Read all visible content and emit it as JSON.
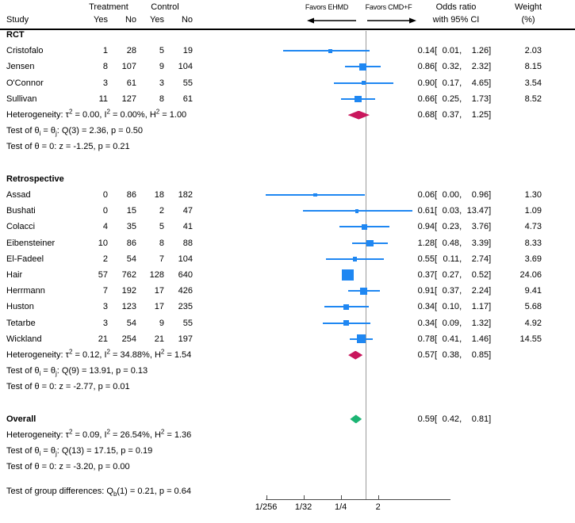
{
  "header": {
    "study": "Study",
    "treatment": "Treatment",
    "control": "Control",
    "yes": "Yes",
    "no": "No",
    "favors_left": "Favors EHMD",
    "favors_right": "Favors CMD+F",
    "or_line1": "Odds ratio",
    "or_line2": "with 95% CI",
    "weight_line1": "Weight",
    "weight_line2": "(%)"
  },
  "colors": {
    "study_marker": "#1f87f2",
    "subgroup_diamond": "#c9165c",
    "overall_diamond": "#1bb473",
    "ref_line": "#9a9a9a",
    "axis": "#4a4a4a",
    "text": "#000000"
  },
  "chart_data": {
    "type": "forest",
    "x_scale": "log2",
    "ref_value": 1,
    "axis_ticks": [
      {
        "label": "1/256",
        "value": 0.00390625
      },
      {
        "label": "1/32",
        "value": 0.03125
      },
      {
        "label": "1/4",
        "value": 0.25
      },
      {
        "label": "2",
        "value": 2
      }
    ],
    "groups": [
      {
        "name": "RCT",
        "studies": [
          {
            "study": "Cristofalo",
            "t_yes": "1",
            "t_no": "28",
            "c_yes": "5",
            "c_no": "19",
            "est": "0.14",
            "lo": "0.01",
            "hi": "1.26",
            "weight": "2.03"
          },
          {
            "study": "Jensen",
            "t_yes": "8",
            "t_no": "107",
            "c_yes": "9",
            "c_no": "104",
            "est": "0.86",
            "lo": "0.32",
            "hi": "2.32",
            "weight": "8.15"
          },
          {
            "study": "O'Connor",
            "t_yes": "3",
            "t_no": "61",
            "c_yes": "3",
            "c_no": "55",
            "est": "0.90",
            "lo": "0.17",
            "hi": "4.65",
            "weight": "3.54"
          },
          {
            "study": "Sullivan",
            "t_yes": "11",
            "t_no": "127",
            "c_yes": "8",
            "c_no": "61",
            "est": "0.66",
            "lo": "0.25",
            "hi": "1.73",
            "weight": "8.52"
          }
        ],
        "summary": {
          "est": "0.68",
          "lo": "0.37",
          "hi": "1.25"
        },
        "notes": [
          "Heterogeneity: τ^2 = 0.00, I^2 = 0.00%, H^2 = 1.00",
          "Test of θ_i = θ_j: Q(3) = 2.36, p = 0.50",
          "Test of θ = 0: z = -1.25, p = 0.21"
        ]
      },
      {
        "name": "Retrospective",
        "studies": [
          {
            "study": "Assad",
            "t_yes": "0",
            "t_no": "86",
            "c_yes": "18",
            "c_no": "182",
            "est": "0.06",
            "lo": "0.00",
            "hi": "0.96",
            "weight": "1.30"
          },
          {
            "study": "Bushati",
            "t_yes": "0",
            "t_no": "15",
            "c_yes": "2",
            "c_no": "47",
            "est": "0.61",
            "lo": "0.03",
            "hi": "13.47",
            "weight": "1.09"
          },
          {
            "study": "Colacci",
            "t_yes": "4",
            "t_no": "35",
            "c_yes": "5",
            "c_no": "41",
            "est": "0.94",
            "lo": "0.23",
            "hi": "3.76",
            "weight": "4.73"
          },
          {
            "study": "Eibensteiner",
            "t_yes": "10",
            "t_no": "86",
            "c_yes": "8",
            "c_no": "88",
            "est": "1.28",
            "lo": "0.48",
            "hi": "3.39",
            "weight": "8.33"
          },
          {
            "study": "El-Fadeel",
            "t_yes": "2",
            "t_no": "54",
            "c_yes": "7",
            "c_no": "104",
            "est": "0.55",
            "lo": "0.11",
            "hi": "2.74",
            "weight": "3.69"
          },
          {
            "study": "Hair",
            "t_yes": "57",
            "t_no": "762",
            "c_yes": "128",
            "c_no": "640",
            "est": "0.37",
            "lo": "0.27",
            "hi": "0.52",
            "weight": "24.06"
          },
          {
            "study": "Herrmann",
            "t_yes": "7",
            "t_no": "192",
            "c_yes": "17",
            "c_no": "426",
            "est": "0.91",
            "lo": "0.37",
            "hi": "2.24",
            "weight": "9.41"
          },
          {
            "study": "Huston",
            "t_yes": "3",
            "t_no": "123",
            "c_yes": "17",
            "c_no": "235",
            "est": "0.34",
            "lo": "0.10",
            "hi": "1.17",
            "weight": "5.68"
          },
          {
            "study": "Tetarbe",
            "t_yes": "3",
            "t_no": "54",
            "c_yes": "9",
            "c_no": "55",
            "est": "0.34",
            "lo": "0.09",
            "hi": "1.32",
            "weight": "4.92"
          },
          {
            "study": "Wickland",
            "t_yes": "21",
            "t_no": "254",
            "c_yes": "21",
            "c_no": "197",
            "est": "0.78",
            "lo": "0.41",
            "hi": "1.46",
            "weight": "14.55"
          }
        ],
        "summary": {
          "est": "0.57",
          "lo": "0.38",
          "hi": "0.85"
        },
        "notes": [
          "Heterogeneity: τ^2 = 0.12, I^2 = 34.88%, H^2 = 1.54",
          "Test of θ_i = θ_j: Q(9) = 13.91, p = 0.13",
          "Test of θ = 0: z = -2.77, p = 0.01"
        ]
      }
    ],
    "overall": {
      "name": "Overall",
      "summary": {
        "est": "0.59",
        "lo": "0.42",
        "hi": "0.81"
      },
      "notes": [
        "Heterogeneity: τ^2 = 0.09, I^2 = 26.54%, H^2 = 1.36",
        "Test of θ_i = θ_j: Q(13) = 17.15, p = 0.19",
        "Test of θ = 0: z = -3.20, p = 0.00"
      ]
    },
    "group_test": "Test of group differences: Q_b(1) = 0.21, p = 0.64"
  }
}
